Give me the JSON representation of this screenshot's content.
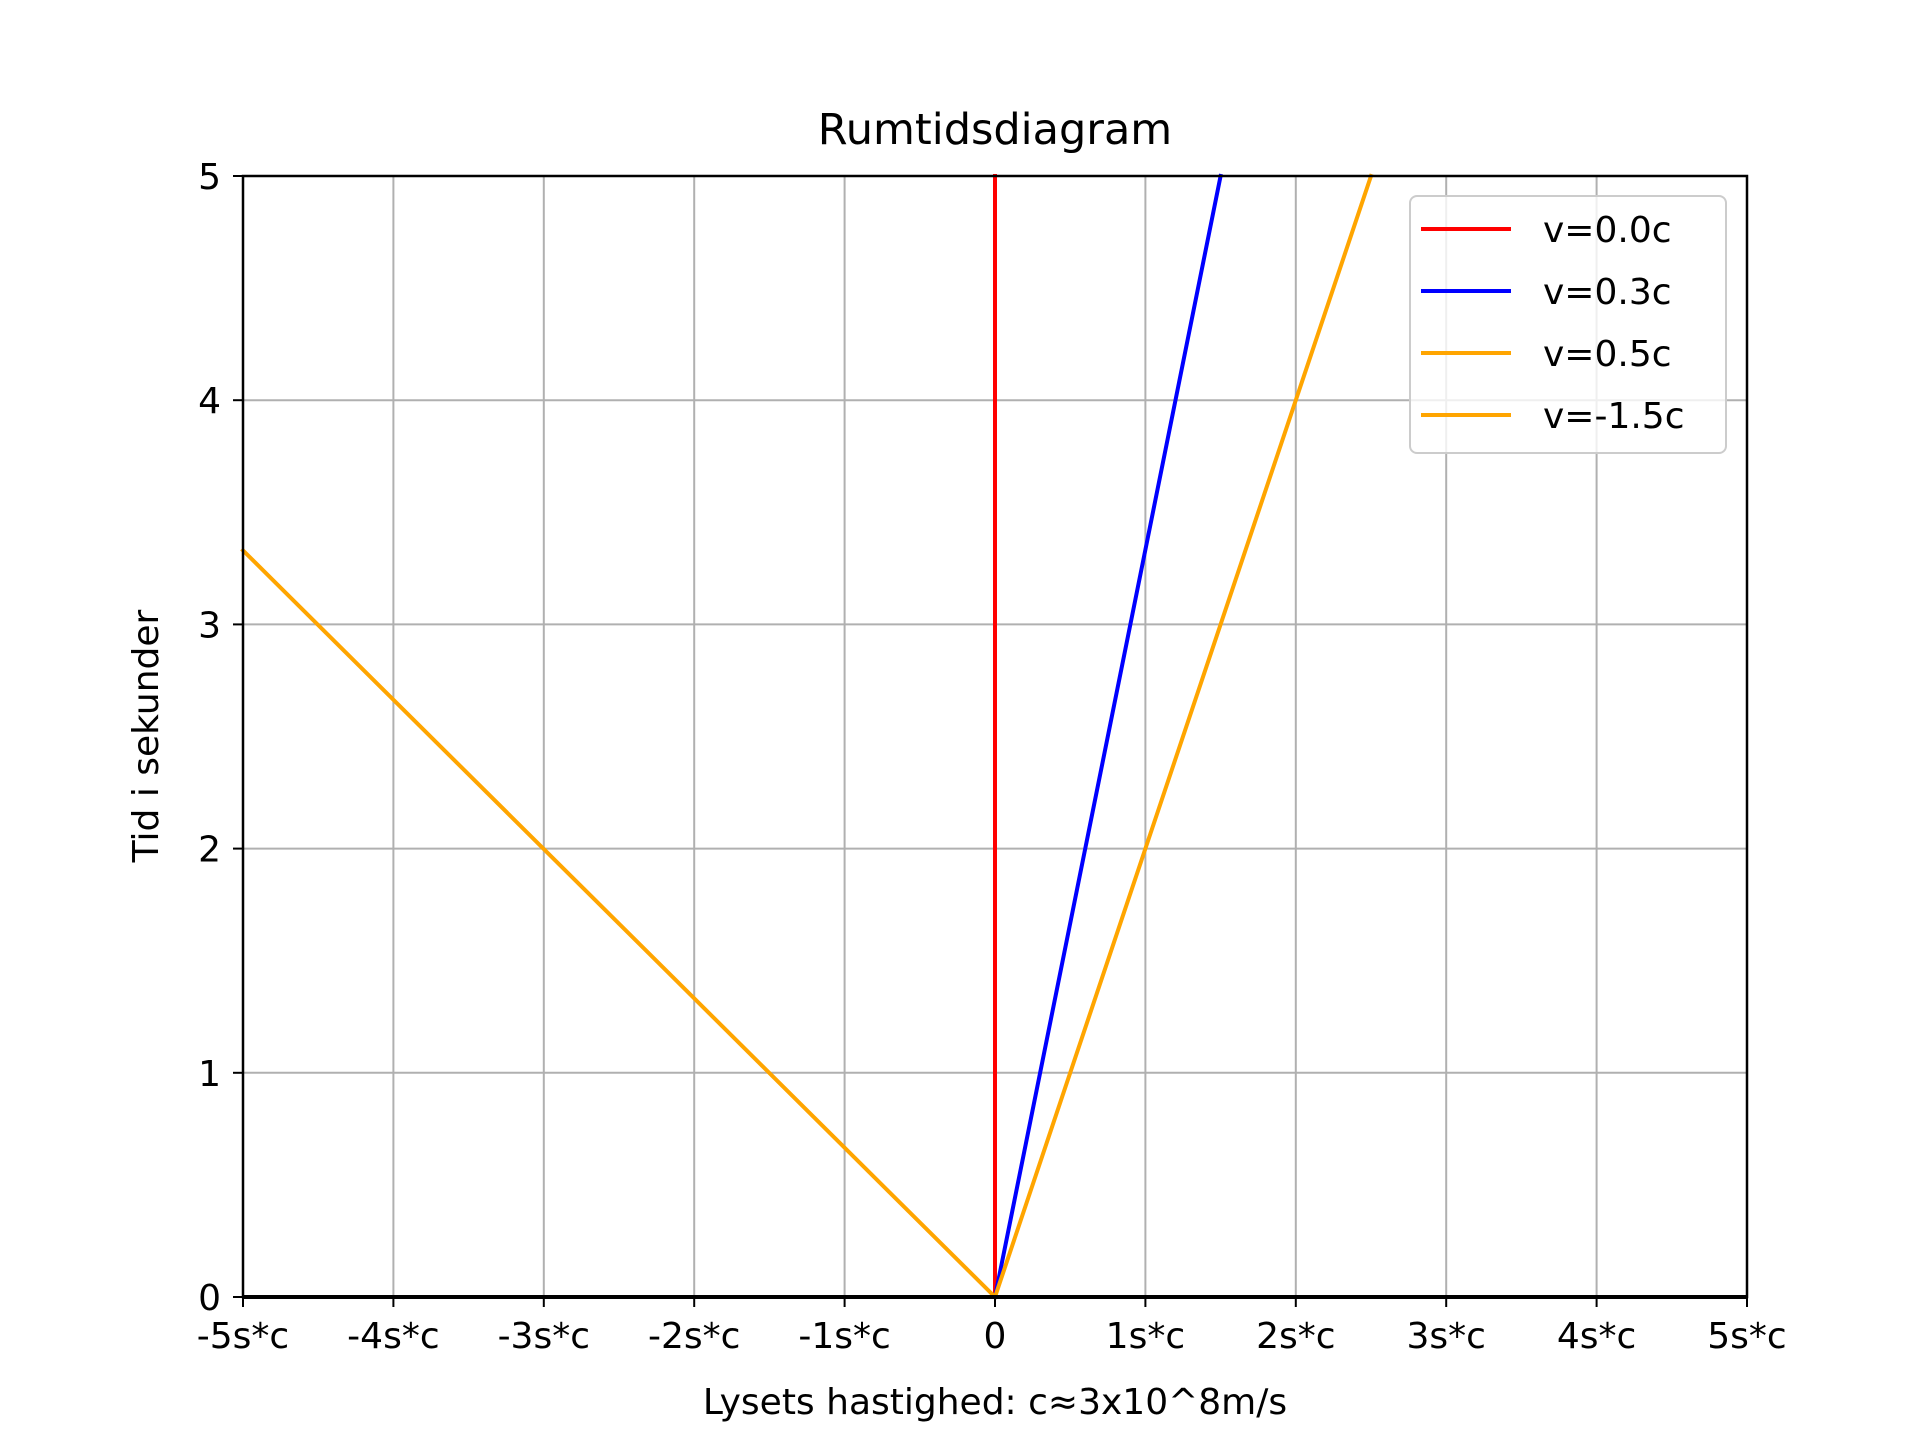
{
  "chart_data": {
    "type": "line",
    "title": "Rumtidsdiagram",
    "xlabel": "Lysets hastighed: c≈3x10^8m/s",
    "ylabel": "Tid i sekunder",
    "xlim": [
      -5,
      5
    ],
    "ylim": [
      0,
      5
    ],
    "grid": true,
    "legend_position": "top-right",
    "x_ticks": [
      {
        "value": -5,
        "label": "-5s*c"
      },
      {
        "value": -4,
        "label": "-4s*c"
      },
      {
        "value": -3,
        "label": "-3s*c"
      },
      {
        "value": -2,
        "label": "-2s*c"
      },
      {
        "value": -1,
        "label": "-1s*c"
      },
      {
        "value": 0,
        "label": "0"
      },
      {
        "value": 1,
        "label": "1s*c"
      },
      {
        "value": 2,
        "label": "2s*c"
      },
      {
        "value": 3,
        "label": "3s*c"
      },
      {
        "value": 4,
        "label": "4s*c"
      },
      {
        "value": 5,
        "label": "5s*c"
      }
    ],
    "y_ticks": [
      {
        "value": 0,
        "label": "0"
      },
      {
        "value": 1,
        "label": "1"
      },
      {
        "value": 2,
        "label": "2"
      },
      {
        "value": 3,
        "label": "3"
      },
      {
        "value": 4,
        "label": "4"
      },
      {
        "value": 5,
        "label": "5"
      }
    ],
    "series": [
      {
        "name": "v=0.0c",
        "color": "#ff0000",
        "x": [
          0,
          0
        ],
        "y": [
          0,
          5
        ]
      },
      {
        "name": "v=0.3c",
        "color": "#0000ff",
        "x": [
          0,
          1.5
        ],
        "y": [
          0,
          5
        ]
      },
      {
        "name": "v=0.5c",
        "color": "#ffa500",
        "x": [
          0,
          2.5
        ],
        "y": [
          0,
          5
        ]
      },
      {
        "name": "v=-1.5c",
        "color": "#ffa500",
        "x": [
          0,
          -5
        ],
        "y": [
          0,
          3.33
        ]
      }
    ]
  }
}
